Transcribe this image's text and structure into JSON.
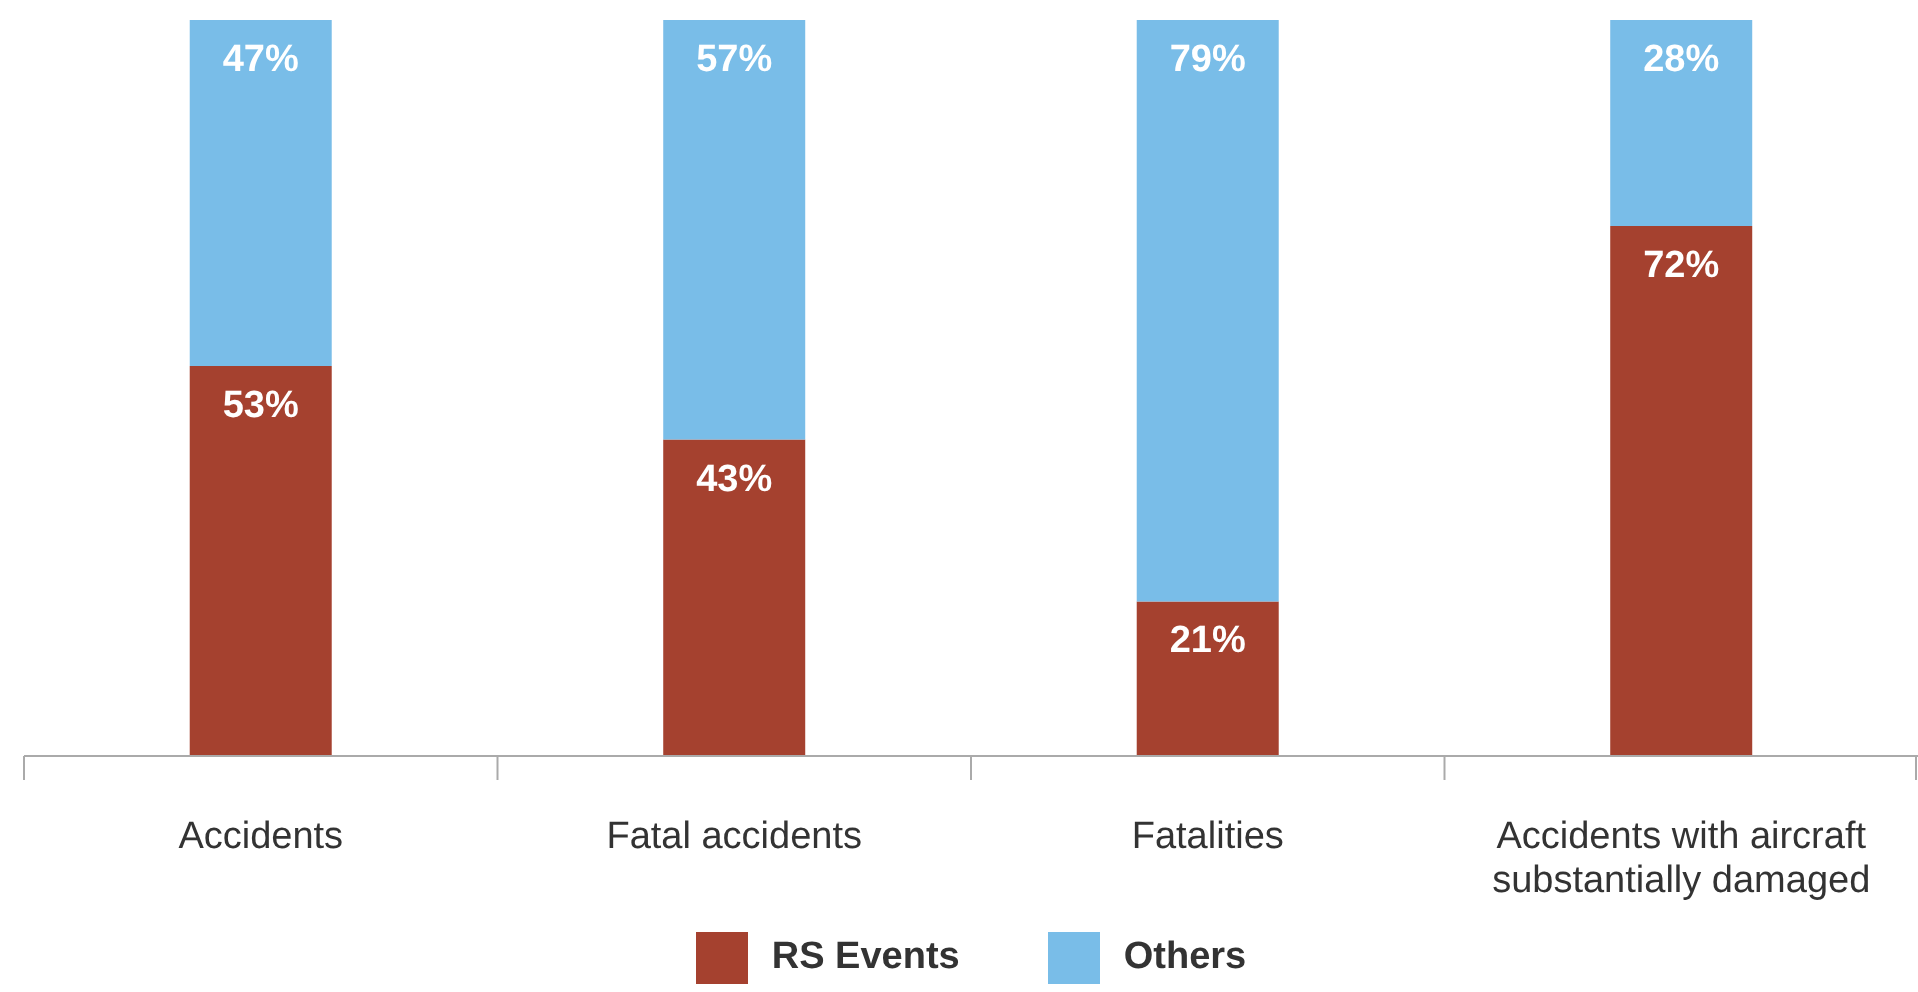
{
  "chart_data": {
    "type": "bar",
    "stacked": true,
    "categories": [
      "Accidents",
      "Fatal accidents",
      "Fatalities",
      "Accidents with aircraft substantially damaged"
    ],
    "series": [
      {
        "name": "RS Events",
        "color": "#a5412f",
        "values": [
          53,
          43,
          21,
          72
        ],
        "value_labels": [
          "53%",
          "43%",
          "21%",
          "72%"
        ]
      },
      {
        "name": "Others",
        "color": "#79bde8",
        "values": [
          47,
          57,
          79,
          28
        ],
        "value_labels": [
          "47%",
          "57%",
          "79%",
          "28%"
        ]
      }
    ],
    "legend": "bottom",
    "grid": false
  }
}
